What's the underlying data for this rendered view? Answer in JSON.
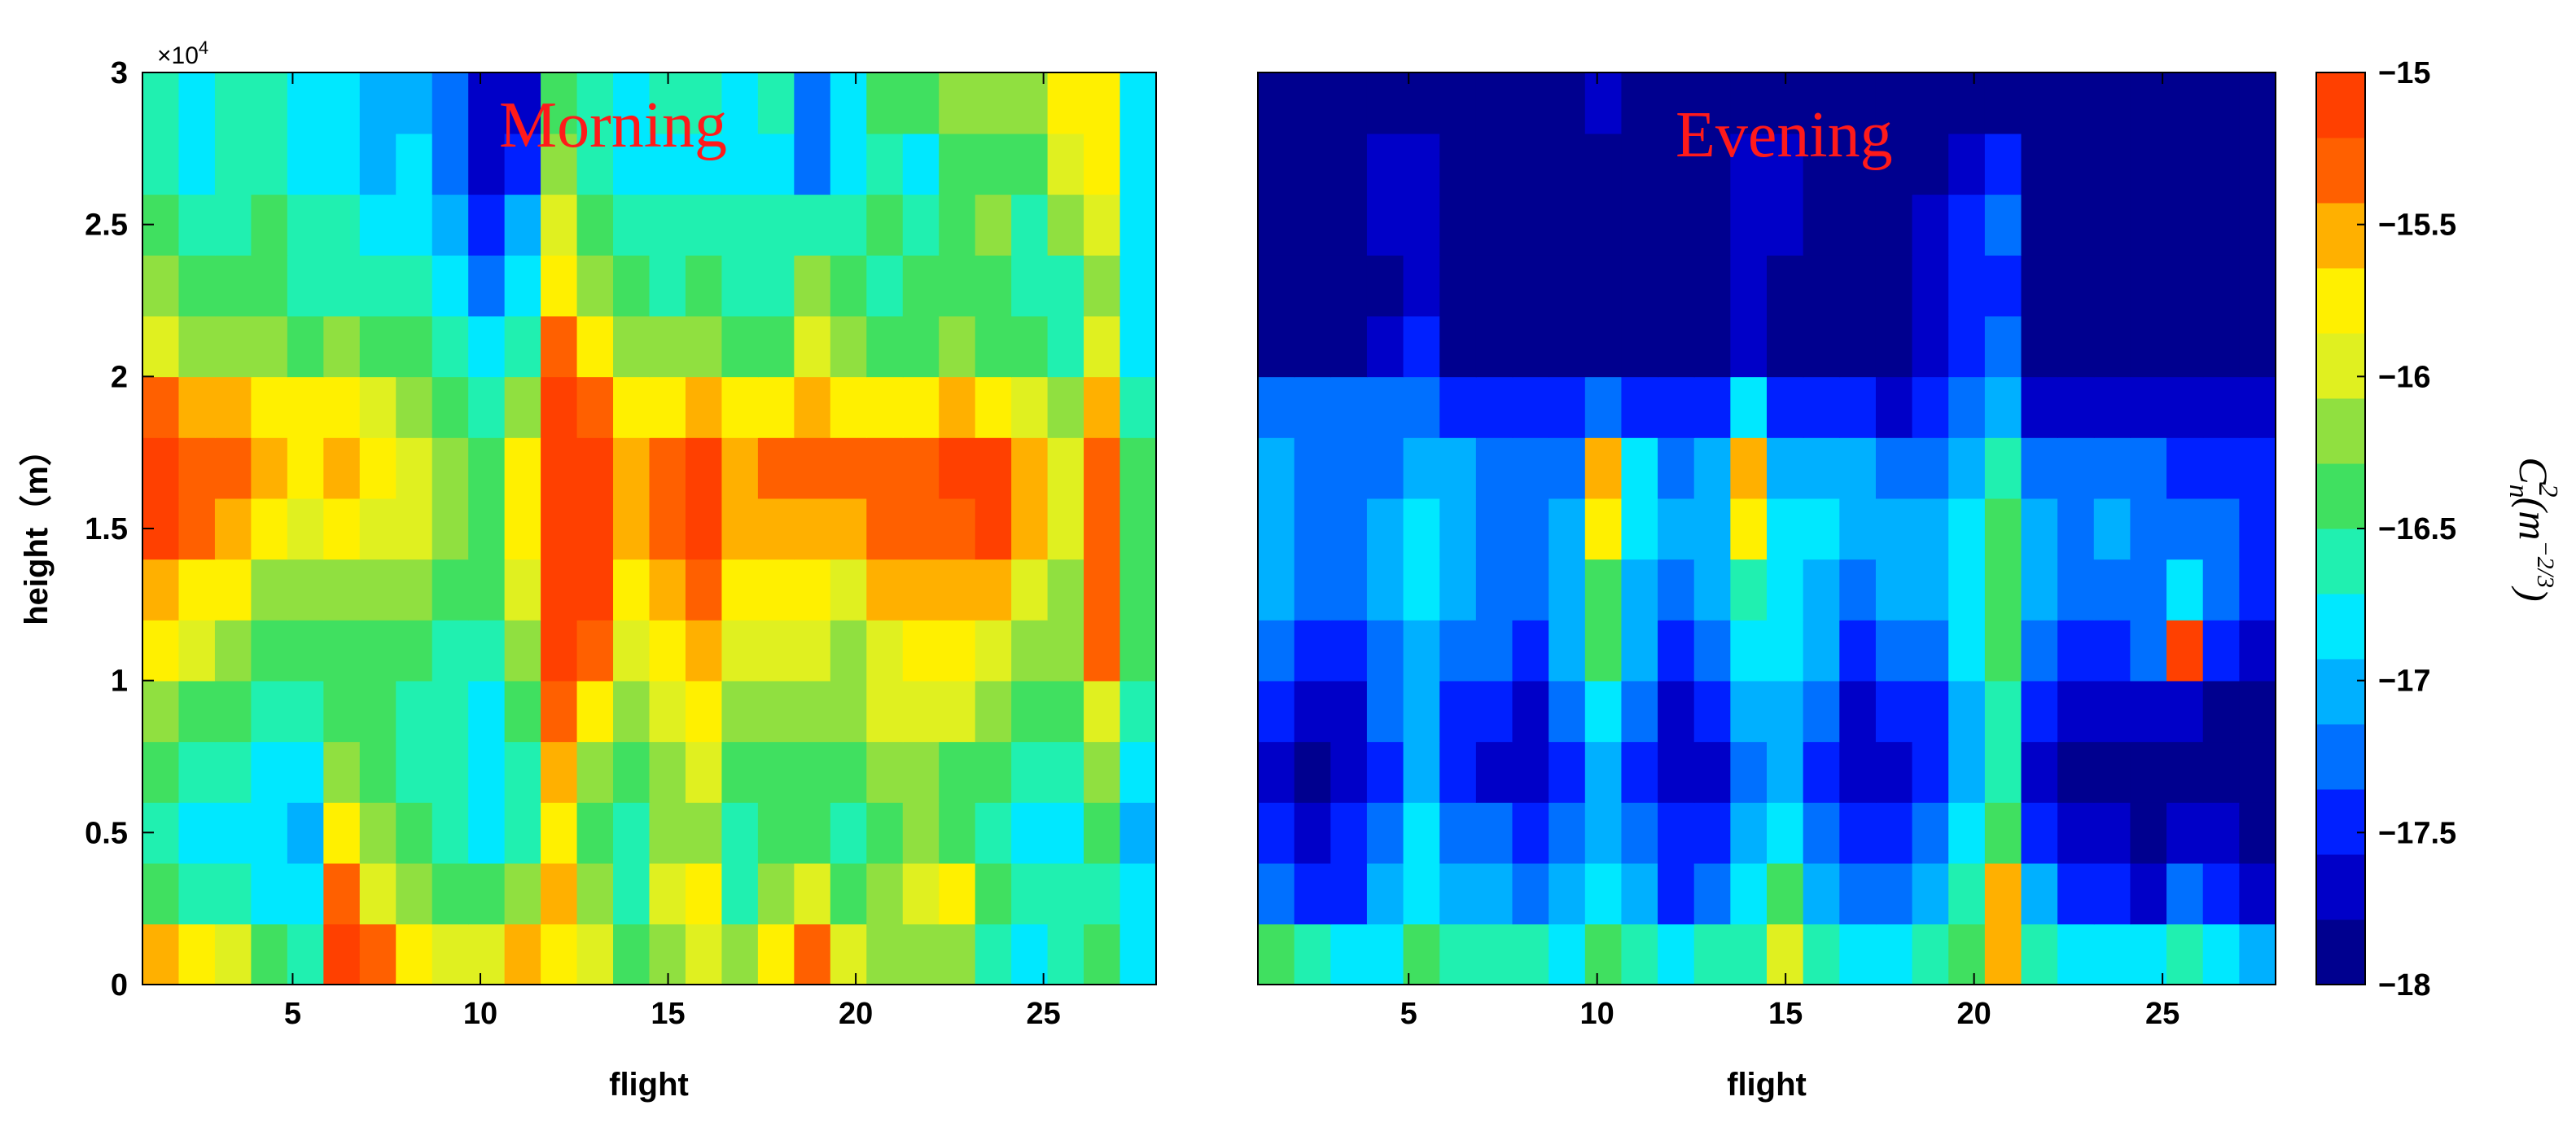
{
  "chart_data": [
    {
      "type": "heatmap",
      "title": "Morning",
      "xlabel": "flight",
      "ylabel": "height（m）",
      "xlim": [
        1,
        28
      ],
      "ylim": [
        0,
        30000
      ],
      "x_ticks": [
        5,
        10,
        15,
        20,
        25
      ],
      "x_tick_labels": [
        "5",
        "10",
        "15",
        "20",
        "25"
      ],
      "y_ticks": [
        0,
        5000,
        10000,
        15000,
        20000,
        25000,
        30000
      ],
      "y_tick_labels": [
        "0",
        "0.5",
        "1",
        "1.5",
        "2",
        "2.5",
        "3"
      ],
      "y_exponent_label": "×10",
      "y_exponent_power": "4",
      "value_range": [
        -18,
        -15
      ],
      "flights": [
        1,
        2,
        3,
        4,
        5,
        6,
        7,
        8,
        9,
        10,
        11,
        12,
        13,
        14,
        15,
        16,
        17,
        18,
        19,
        20,
        21,
        22,
        23,
        24,
        25,
        26,
        27,
        28
      ],
      "height_bins": [
        0,
        2000,
        4000,
        6000,
        8000,
        10000,
        12000,
        14000,
        16000,
        18000,
        20000,
        22000,
        24000,
        26000,
        28000,
        30000
      ],
      "values": [
        [
          -15.6,
          -15.8,
          -16.0,
          -16.4,
          -16.6,
          -15.2,
          -15.4,
          -15.8,
          -16.0,
          -16.0,
          -15.6,
          -15.8,
          -16.0,
          -16.4,
          -16.2,
          -16.0,
          -16.2,
          -15.8,
          -15.4,
          -16.0,
          -16.2,
          -16.2,
          -16.2,
          -16.6,
          -16.8,
          -16.6,
          -16.4,
          -16.8
        ],
        [
          -16.4,
          -16.6,
          -16.6,
          -16.8,
          -16.8,
          -15.4,
          -16.0,
          -16.2,
          -16.4,
          -16.4,
          -16.2,
          -15.6,
          -16.2,
          -16.6,
          -16.0,
          -15.8,
          -16.6,
          -16.2,
          -16.0,
          -16.4,
          -16.2,
          -16.0,
          -15.8,
          -16.4,
          -16.6,
          -16.6,
          -16.6,
          -16.8
        ],
        [
          -16.6,
          -16.8,
          -16.8,
          -16.8,
          -17.0,
          -15.8,
          -16.2,
          -16.4,
          -16.6,
          -16.8,
          -16.6,
          -15.8,
          -16.4,
          -16.6,
          -16.2,
          -16.2,
          -16.6,
          -16.4,
          -16.4,
          -16.6,
          -16.4,
          -16.2,
          -16.4,
          -16.6,
          -16.8,
          -16.8,
          -16.4,
          -17.0
        ],
        [
          -16.4,
          -16.6,
          -16.6,
          -16.8,
          -16.8,
          -16.2,
          -16.4,
          -16.6,
          -16.6,
          -16.8,
          -16.6,
          -15.6,
          -16.2,
          -16.4,
          -16.2,
          -16.0,
          -16.4,
          -16.4,
          -16.4,
          -16.4,
          -16.2,
          -16.2,
          -16.4,
          -16.4,
          -16.6,
          -16.6,
          -16.2,
          -16.8
        ],
        [
          -16.2,
          -16.4,
          -16.4,
          -16.6,
          -16.6,
          -16.4,
          -16.4,
          -16.6,
          -16.6,
          -16.8,
          -16.4,
          -15.4,
          -15.8,
          -16.2,
          -16.0,
          -15.8,
          -16.2,
          -16.2,
          -16.2,
          -16.2,
          -16.0,
          -16.0,
          -16.0,
          -16.2,
          -16.4,
          -16.4,
          -16.0,
          -16.6
        ],
        [
          -15.8,
          -16.0,
          -16.2,
          -16.4,
          -16.4,
          -16.4,
          -16.4,
          -16.4,
          -16.6,
          -16.6,
          -16.2,
          -15.2,
          -15.4,
          -16.0,
          -15.8,
          -15.6,
          -16.0,
          -16.0,
          -16.0,
          -16.2,
          -16.0,
          -15.8,
          -15.8,
          -16.0,
          -16.2,
          -16.2,
          -15.4,
          -16.4
        ],
        [
          -15.6,
          -15.8,
          -15.8,
          -16.2,
          -16.2,
          -16.2,
          -16.2,
          -16.2,
          -16.4,
          -16.4,
          -16.0,
          -15.0,
          -15.2,
          -15.8,
          -15.6,
          -15.4,
          -15.8,
          -15.8,
          -15.8,
          -16.0,
          -15.6,
          -15.6,
          -15.6,
          -15.6,
          -16.0,
          -16.2,
          -15.4,
          -16.4
        ],
        [
          -15.2,
          -15.4,
          -15.6,
          -15.8,
          -16.0,
          -15.8,
          -16.0,
          -16.0,
          -16.2,
          -16.4,
          -15.8,
          -15.0,
          -15.2,
          -15.6,
          -15.4,
          -15.2,
          -15.6,
          -15.6,
          -15.6,
          -15.6,
          -15.4,
          -15.4,
          -15.4,
          -15.2,
          -15.6,
          -16.0,
          -15.4,
          -16.4
        ],
        [
          -15.2,
          -15.4,
          -15.4,
          -15.6,
          -15.8,
          -15.6,
          -15.8,
          -16.0,
          -16.2,
          -16.4,
          -15.8,
          -15.0,
          -15.2,
          -15.6,
          -15.4,
          -15.2,
          -15.6,
          -15.4,
          -15.4,
          -15.4,
          -15.4,
          -15.4,
          -15.2,
          -15.2,
          -15.6,
          -16.0,
          -15.4,
          -16.4
        ],
        [
          -15.4,
          -15.6,
          -15.6,
          -15.8,
          -15.8,
          -15.8,
          -16.0,
          -16.2,
          -16.4,
          -16.6,
          -16.2,
          -15.2,
          -15.4,
          -15.8,
          -15.8,
          -15.6,
          -15.8,
          -15.8,
          -15.6,
          -15.8,
          -15.8,
          -15.8,
          -15.6,
          -15.8,
          -16.0,
          -16.2,
          -15.6,
          -16.6
        ],
        [
          -16.0,
          -16.2,
          -16.2,
          -16.2,
          -16.4,
          -16.2,
          -16.4,
          -16.4,
          -16.6,
          -16.8,
          -16.6,
          -15.4,
          -15.8,
          -16.2,
          -16.2,
          -16.2,
          -16.4,
          -16.4,
          -16.0,
          -16.2,
          -16.4,
          -16.4,
          -16.2,
          -16.4,
          -16.4,
          -16.6,
          -16.0,
          -16.8
        ],
        [
          -16.2,
          -16.4,
          -16.4,
          -16.4,
          -16.6,
          -16.6,
          -16.6,
          -16.6,
          -16.8,
          -17.2,
          -16.8,
          -15.8,
          -16.2,
          -16.4,
          -16.6,
          -16.4,
          -16.6,
          -16.6,
          -16.2,
          -16.4,
          -16.6,
          -16.4,
          -16.4,
          -16.4,
          -16.6,
          -16.6,
          -16.2,
          -16.8
        ],
        [
          -16.4,
          -16.6,
          -16.6,
          -16.4,
          -16.6,
          -16.6,
          -16.8,
          -16.8,
          -17.0,
          -17.4,
          -17.0,
          -16.0,
          -16.4,
          -16.6,
          -16.6,
          -16.6,
          -16.6,
          -16.6,
          -16.6,
          -16.6,
          -16.4,
          -16.6,
          -16.4,
          -16.2,
          -16.6,
          -16.2,
          -16.0,
          -16.8
        ],
        [
          -16.6,
          -16.8,
          -16.6,
          -16.6,
          -16.8,
          -16.8,
          -17.0,
          -16.8,
          -17.2,
          -17.6,
          -17.4,
          -16.2,
          -16.6,
          -16.8,
          -16.8,
          -16.8,
          -16.8,
          -16.8,
          -17.2,
          -16.8,
          -16.6,
          -16.8,
          -16.4,
          -16.4,
          -16.4,
          -16.0,
          -15.8,
          -16.8
        ],
        [
          -16.6,
          -16.8,
          -16.6,
          -16.6,
          -16.8,
          -16.8,
          -17.0,
          -17.0,
          -17.2,
          -17.6,
          -17.6,
          -16.4,
          -16.6,
          -16.8,
          -16.6,
          -16.6,
          -16.8,
          -16.6,
          -17.2,
          -16.8,
          -16.4,
          -16.4,
          -16.2,
          -16.2,
          -16.2,
          -15.8,
          -15.8,
          -16.8
        ]
      ]
    },
    {
      "type": "heatmap",
      "title": "Evening",
      "xlabel": "flight",
      "ylabel": "",
      "xlim": [
        1,
        28
      ],
      "ylim": [
        0,
        30000
      ],
      "x_ticks": [
        5,
        10,
        15,
        20,
        25
      ],
      "x_tick_labels": [
        "5",
        "10",
        "15",
        "20",
        "25"
      ],
      "value_range": [
        -18,
        -15
      ],
      "flights": [
        1,
        2,
        3,
        4,
        5,
        6,
        7,
        8,
        9,
        10,
        11,
        12,
        13,
        14,
        15,
        16,
        17,
        18,
        19,
        20,
        21,
        22,
        23,
        24,
        25,
        26,
        27,
        28
      ],
      "height_bins": [
        0,
        2000,
        4000,
        6000,
        8000,
        10000,
        12000,
        14000,
        16000,
        18000,
        20000,
        22000,
        24000,
        26000,
        28000,
        30000
      ],
      "values": [
        [
          -16.4,
          -16.6,
          -16.8,
          -16.8,
          -16.4,
          -16.6,
          -16.6,
          -16.6,
          -16.8,
          -16.4,
          -16.6,
          -16.8,
          -16.6,
          -16.6,
          -16.0,
          -16.6,
          -16.8,
          -16.8,
          -16.6,
          -16.4,
          -15.6,
          -16.6,
          -16.8,
          -16.8,
          -16.8,
          -16.6,
          -16.8,
          -17.0
        ],
        [
          -17.2,
          -17.4,
          -17.4,
          -17.0,
          -16.8,
          -17.0,
          -17.0,
          -17.2,
          -17.0,
          -16.8,
          -17.0,
          -17.4,
          -17.2,
          -16.8,
          -16.4,
          -17.0,
          -17.2,
          -17.2,
          -17.0,
          -16.6,
          -15.6,
          -17.0,
          -17.4,
          -17.4,
          -17.6,
          -17.2,
          -17.4,
          -17.6
        ],
        [
          -17.4,
          -17.6,
          -17.4,
          -17.2,
          -16.8,
          -17.2,
          -17.2,
          -17.4,
          -17.2,
          -17.0,
          -17.2,
          -17.4,
          -17.4,
          -17.0,
          -16.8,
          -17.2,
          -17.4,
          -17.4,
          -17.2,
          -16.8,
          -16.4,
          -17.4,
          -17.6,
          -17.6,
          -17.8,
          -17.6,
          -17.6,
          -17.8
        ],
        [
          -17.6,
          -17.8,
          -17.6,
          -17.4,
          -17.0,
          -17.4,
          -17.6,
          -17.6,
          -17.4,
          -17.0,
          -17.4,
          -17.6,
          -17.6,
          -17.2,
          -17.0,
          -17.4,
          -17.6,
          -17.6,
          -17.4,
          -17.0,
          -16.6,
          -17.6,
          -17.8,
          -17.8,
          -17.8,
          -17.8,
          -17.8,
          -17.8
        ],
        [
          -17.4,
          -17.6,
          -17.6,
          -17.2,
          -17.0,
          -17.4,
          -17.4,
          -17.6,
          -17.2,
          -16.8,
          -17.2,
          -17.6,
          -17.4,
          -17.0,
          -17.0,
          -17.2,
          -17.6,
          -17.4,
          -17.4,
          -17.0,
          -16.6,
          -17.4,
          -17.6,
          -17.6,
          -17.6,
          -17.6,
          -17.8,
          -17.8
        ],
        [
          -17.2,
          -17.4,
          -17.4,
          -17.2,
          -17.0,
          -17.2,
          -17.2,
          -17.4,
          -17.0,
          -16.4,
          -17.0,
          -17.4,
          -17.2,
          -16.8,
          -16.8,
          -17.0,
          -17.4,
          -17.2,
          -17.2,
          -16.8,
          -16.4,
          -17.2,
          -17.4,
          -17.4,
          -17.2,
          -15.2,
          -17.4,
          -17.6
        ],
        [
          -17.0,
          -17.2,
          -17.2,
          -17.0,
          -16.8,
          -17.0,
          -17.2,
          -17.2,
          -17.0,
          -16.4,
          -17.0,
          -17.2,
          -17.0,
          -16.6,
          -16.8,
          -17.0,
          -17.2,
          -17.0,
          -17.0,
          -16.8,
          -16.4,
          -17.0,
          -17.2,
          -17.2,
          -17.2,
          -16.8,
          -17.2,
          -17.4
        ],
        [
          -17.0,
          -17.2,
          -17.2,
          -17.0,
          -16.8,
          -17.0,
          -17.2,
          -17.2,
          -17.0,
          -15.8,
          -16.8,
          -17.0,
          -17.0,
          -15.8,
          -16.8,
          -16.8,
          -17.0,
          -17.0,
          -17.0,
          -16.8,
          -16.4,
          -17.0,
          -17.2,
          -17.0,
          -17.2,
          -17.2,
          -17.2,
          -17.4
        ],
        [
          -17.0,
          -17.2,
          -17.2,
          -17.2,
          -17.0,
          -17.0,
          -17.2,
          -17.2,
          -17.2,
          -15.6,
          -16.8,
          -17.2,
          -17.0,
          -15.6,
          -17.0,
          -17.0,
          -17.0,
          -17.2,
          -17.2,
          -17.0,
          -16.6,
          -17.2,
          -17.2,
          -17.2,
          -17.2,
          -17.4,
          -17.4,
          -17.4
        ],
        [
          -17.2,
          -17.2,
          -17.2,
          -17.2,
          -17.2,
          -17.4,
          -17.4,
          -17.4,
          -17.4,
          -17.2,
          -17.4,
          -17.4,
          -17.4,
          -16.8,
          -17.4,
          -17.4,
          -17.4,
          -17.6,
          -17.4,
          -17.2,
          -17.0,
          -17.6,
          -17.6,
          -17.6,
          -17.6,
          -17.6,
          -17.6,
          -17.6
        ],
        [
          -18.0,
          -18.0,
          -18.0,
          -17.6,
          -17.4,
          -17.8,
          -18.0,
          -18.0,
          -17.8,
          -17.8,
          -17.8,
          -18.0,
          -17.8,
          -17.6,
          -17.8,
          -17.8,
          -17.8,
          -17.8,
          -17.6,
          -17.4,
          -17.2,
          -17.8,
          -17.8,
          -17.8,
          -17.8,
          -17.8,
          -17.8,
          -18.0
        ],
        [
          -18.0,
          -18.0,
          -18.0,
          -17.8,
          -17.6,
          -18.0,
          -18.0,
          -18.0,
          -18.0,
          -18.0,
          -18.0,
          -18.0,
          -18.0,
          -17.6,
          -17.8,
          -17.8,
          -18.0,
          -18.0,
          -17.6,
          -17.4,
          -17.4,
          -18.0,
          -18.0,
          -18.0,
          -18.0,
          -18.0,
          -18.0,
          -18.0
        ],
        [
          -18.0,
          -18.0,
          -18.0,
          -17.6,
          -17.6,
          -18.0,
          -18.0,
          -18.0,
          -18.0,
          -18.0,
          -18.0,
          -18.0,
          -18.0,
          -17.6,
          -17.6,
          -17.8,
          -18.0,
          -18.0,
          -17.6,
          -17.4,
          -17.2,
          -18.0,
          -18.0,
          -17.8,
          -18.0,
          -18.0,
          -18.0,
          -18.0
        ],
        [
          -18.0,
          -18.0,
          -18.0,
          -17.6,
          -17.6,
          -18.0,
          -18.0,
          -18.0,
          -17.8,
          -17.8,
          -18.0,
          -18.0,
          -18.0,
          -17.6,
          -17.6,
          -17.8,
          -18.0,
          -18.0,
          -17.8,
          -17.6,
          -17.4,
          -17.8,
          -18.0,
          -18.0,
          -18.0,
          -18.0,
          -18.0,
          -18.0
        ],
        [
          -18.0,
          -18.0,
          -18.0,
          -17.8,
          -17.8,
          -18.0,
          -18.0,
          -18.0,
          -18.0,
          -17.6,
          -18.0,
          -18.0,
          -18.0,
          -17.8,
          -17.8,
          -17.8,
          -18.0,
          -18.0,
          -18.0,
          -17.8,
          -17.8,
          -18.0,
          -18.0,
          -18.0,
          -18.0,
          -18.0,
          -18.0,
          -18.0
        ]
      ]
    }
  ],
  "colorbar": {
    "min": -18,
    "max": -15,
    "tick_values": [
      -18,
      -17.5,
      -17,
      -16.5,
      -16,
      -15.5,
      -15
    ],
    "tick_labels": [
      "−18",
      "−17.5",
      "−17",
      "−16.5",
      "−16",
      "−15.5",
      "−15"
    ],
    "levels": [
      "#00008f",
      "#0000c8",
      "#0020ff",
      "#0070ff",
      "#00b0ff",
      "#00e8ff",
      "#20f0b0",
      "#40e060",
      "#90e040",
      "#e0f020",
      "#fff000",
      "#ffb000",
      "#ff6000",
      "#ff4000"
    ],
    "label": "C_n^2(m^{-2/3})"
  }
}
